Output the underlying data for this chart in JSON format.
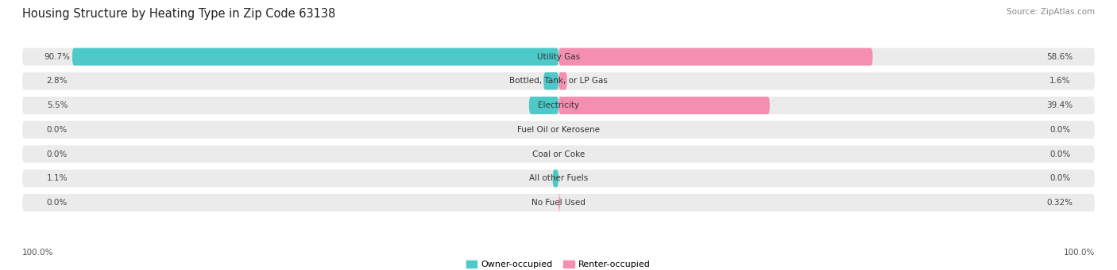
{
  "title": "Housing Structure by Heating Type in Zip Code 63138",
  "source": "Source: ZipAtlas.com",
  "categories": [
    "Utility Gas",
    "Bottled, Tank, or LP Gas",
    "Electricity",
    "Fuel Oil or Kerosene",
    "Coal or Coke",
    "All other Fuels",
    "No Fuel Used"
  ],
  "owner_values": [
    90.7,
    2.8,
    5.5,
    0.0,
    0.0,
    1.1,
    0.0
  ],
  "renter_values": [
    58.6,
    1.6,
    39.4,
    0.0,
    0.0,
    0.0,
    0.32
  ],
  "owner_color": "#4ec9c9",
  "renter_color": "#f48fb1",
  "bar_bg_color": "#ebebeb",
  "max_value": 100.0,
  "owner_label": "Owner-occupied",
  "renter_label": "Renter-occupied",
  "title_fontsize": 10.5,
  "source_fontsize": 7.5,
  "value_fontsize": 7.5,
  "category_fontsize": 7.5,
  "axis_label_left": "100.0%",
  "axis_label_right": "100.0%"
}
